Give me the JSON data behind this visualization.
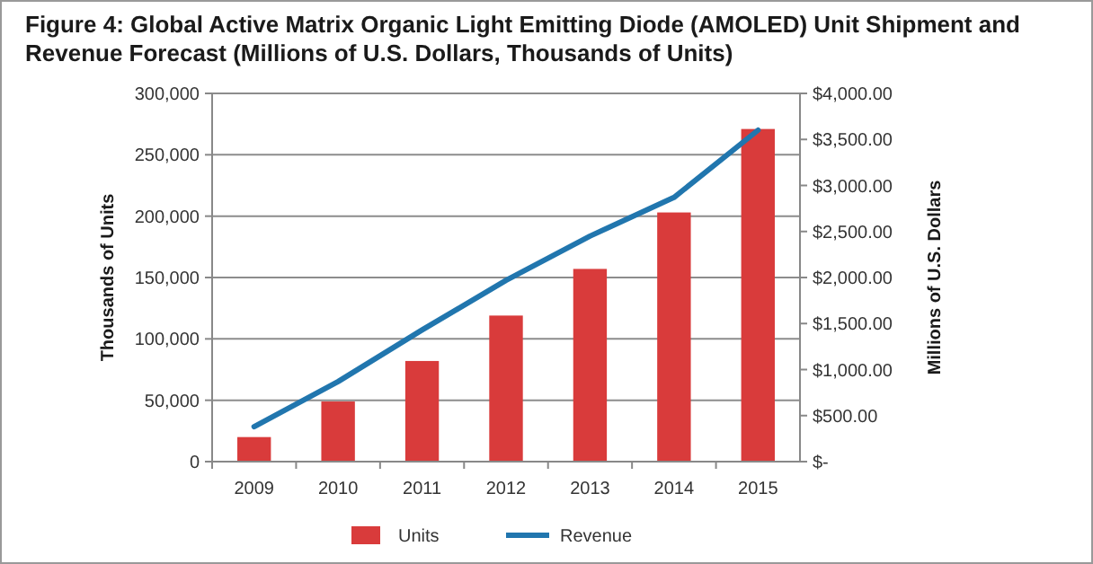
{
  "chart_data": {
    "type": "bar",
    "title": "Figure 4: Global Active Matrix Organic Light Emitting Diode (AMOLED) Unit Shipment and Revenue Forecast (Millions of U.S. Dollars, Thousands of Units)",
    "categories": [
      "2009",
      "2010",
      "2011",
      "2012",
      "2013",
      "2014",
      "2015"
    ],
    "series": [
      {
        "name": "Units",
        "color": "#d93b3b",
        "values": [
          20000,
          49000,
          82000,
          119000,
          157000,
          203000,
          271000
        ]
      },
      {
        "name": "Revenue",
        "type": "line",
        "axis": "y2",
        "color": "#2176ae",
        "values": [
          380,
          870,
          1430,
          1970,
          2450,
          2870,
          3600
        ]
      }
    ],
    "ylabel": "Thousands of Units",
    "y2label": "Millions of U.S. Dollars",
    "ylim": [
      0,
      300000
    ],
    "yticks": [
      {
        "value": 0,
        "label": "0"
      },
      {
        "value": 50000,
        "label": "50,000"
      },
      {
        "value": 100000,
        "label": "100,000"
      },
      {
        "value": 150000,
        "label": "150,000"
      },
      {
        "value": 200000,
        "label": "200,000"
      },
      {
        "value": 250000,
        "label": "250,000"
      },
      {
        "value": 300000,
        "label": "300,000"
      }
    ],
    "y2lim": [
      0,
      4000
    ],
    "y2ticks": [
      {
        "value": 0,
        "label": "$-"
      },
      {
        "value": 500,
        "label": "$500.00"
      },
      {
        "value": 1000,
        "label": "$1,000.00"
      },
      {
        "value": 1500,
        "label": "$1,500.00"
      },
      {
        "value": 2000,
        "label": "$2,000.00"
      },
      {
        "value": 2500,
        "label": "$2,500.00"
      },
      {
        "value": 3000,
        "label": "$3,000.00"
      },
      {
        "value": 3500,
        "label": "$3,500.00"
      },
      {
        "value": 4000,
        "label": "$4,000.00"
      }
    ],
    "grid": "y",
    "legend": "bottom",
    "marker": "none",
    "line_style": "solid"
  }
}
